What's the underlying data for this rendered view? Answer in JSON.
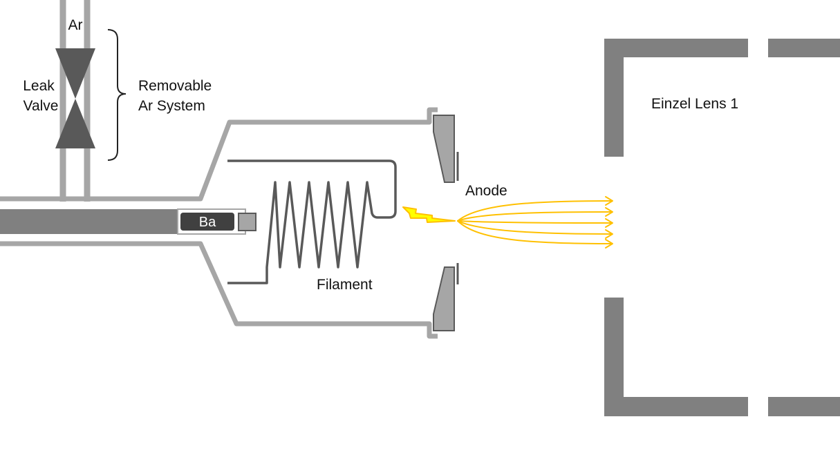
{
  "labels": {
    "gas": "Ar",
    "leak_valve_line1": "Leak",
    "leak_valve_line2": "Valve",
    "removable_line1": "Removable",
    "removable_line2": "Ar System",
    "sample": "Ba",
    "filament": "Filament",
    "anode": "Anode",
    "einzel_lens": "Einzel Lens 1"
  },
  "colors": {
    "tube": "#a6a6a6",
    "dark_gray": "#808080",
    "valve": "#595959",
    "coil": "#595959",
    "sample_box": "#404040",
    "anode_plate": "#a6a6a6",
    "beam": "#ffc000",
    "spark": "#ffff00"
  }
}
